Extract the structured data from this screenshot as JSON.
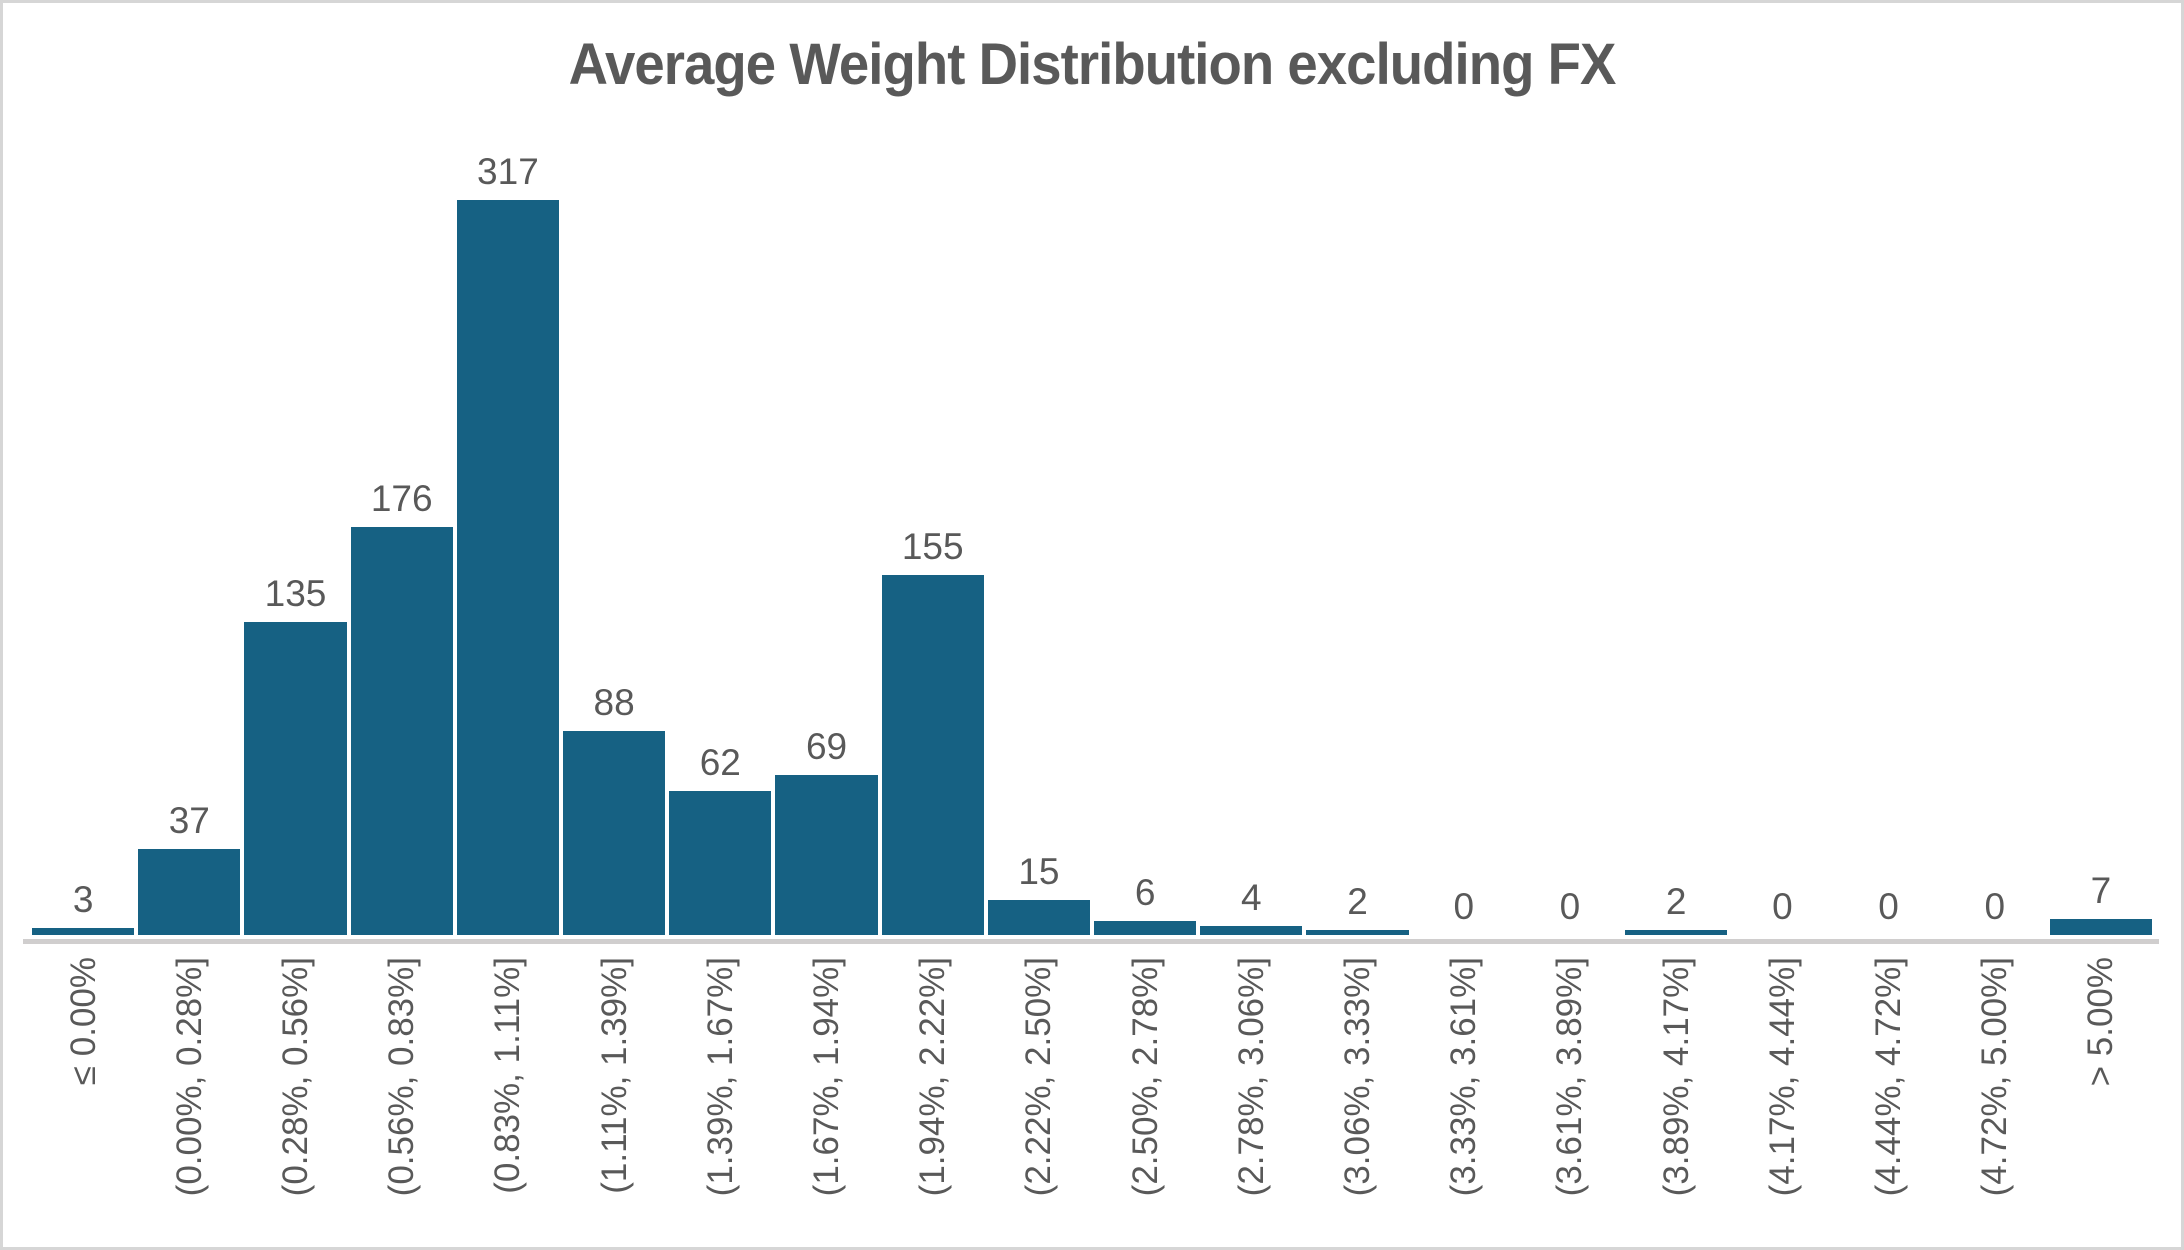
{
  "chart_data": {
    "type": "bar",
    "title": "Average Weight Distribution excluding FX",
    "categories": [
      "≤ 0.00%",
      "(0.00%, 0.28%]",
      "(0.28%, 0.56%]",
      "(0.56%, 0.83%]",
      "(0.83%, 1.11%]",
      "(1.11%, 1.39%]",
      "(1.39%, 1.67%]",
      "(1.67%, 1.94%]",
      "(1.94%, 2.22%]",
      "(2.22%, 2.50%]",
      "(2.50%, 2.78%]",
      "(2.78%, 3.06%]",
      "(3.06%, 3.33%]",
      "(3.33%, 3.61%]",
      "(3.61%, 3.89%]",
      "(3.89%, 4.17%]",
      "(4.17%, 4.44%]",
      "(4.44%, 4.72%]",
      "(4.72%, 5.00%]",
      "> 5.00%"
    ],
    "values": [
      3,
      37,
      135,
      176,
      317,
      88,
      62,
      69,
      155,
      15,
      6,
      4,
      2,
      0,
      0,
      2,
      0,
      0,
      0,
      7
    ],
    "xlabel": "",
    "ylabel": "",
    "ylim": [
      0,
      340
    ],
    "grid": "off",
    "legend": "none",
    "data_labels": "above-bars",
    "x_label_rotation_deg": 90,
    "colors": {
      "bar": "#166183",
      "text": "#595959",
      "axis_line": "#d0cece",
      "border": "#d6d6d6",
      "background": "#ffffff"
    }
  }
}
